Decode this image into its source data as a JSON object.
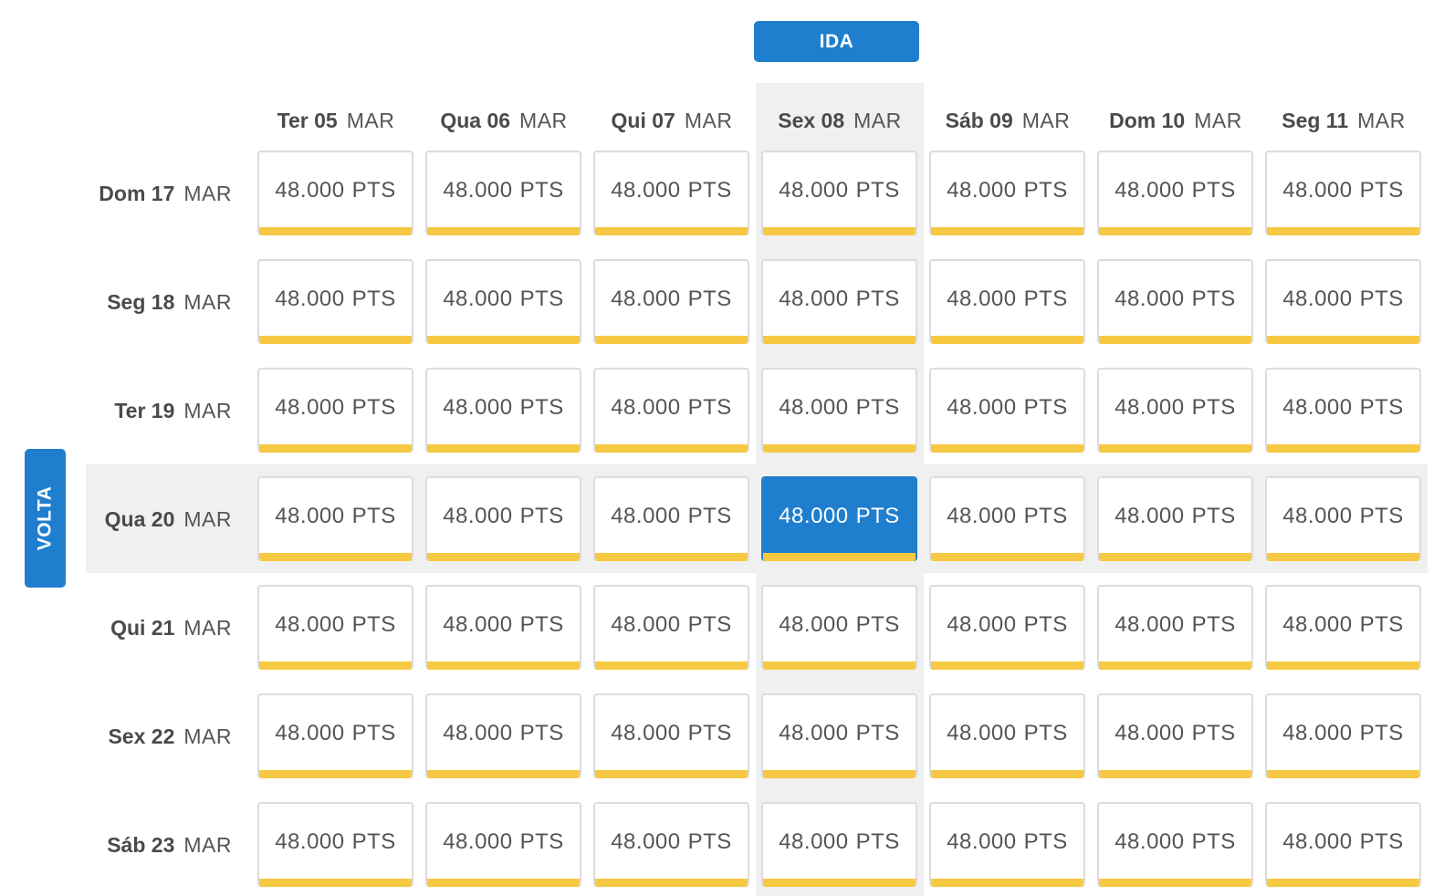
{
  "ida_label": "IDA",
  "volta_label": "VOLTA",
  "columns": [
    {
      "day": "Ter 05",
      "month": "MAR"
    },
    {
      "day": "Qua 06",
      "month": "MAR"
    },
    {
      "day": "Qui 07",
      "month": "MAR"
    },
    {
      "day": "Sex 08",
      "month": "MAR"
    },
    {
      "day": "Sáb 09",
      "month": "MAR"
    },
    {
      "day": "Dom 10",
      "month": "MAR"
    },
    {
      "day": "Seg 11",
      "month": "MAR"
    }
  ],
  "rows": [
    {
      "day": "Dom 17",
      "month": "MAR"
    },
    {
      "day": "Seg 18",
      "month": "MAR"
    },
    {
      "day": "Ter 19",
      "month": "MAR"
    },
    {
      "day": "Qua 20",
      "month": "MAR"
    },
    {
      "day": "Qui 21",
      "month": "MAR"
    },
    {
      "day": "Sex 22",
      "month": "MAR"
    },
    {
      "day": "Sáb 23",
      "month": "MAR"
    }
  ],
  "prices": [
    [
      "48.000",
      "48.000",
      "48.000",
      "48.000",
      "48.000",
      "48.000",
      "48.000"
    ],
    [
      "48.000",
      "48.000",
      "48.000",
      "48.000",
      "48.000",
      "48.000",
      "48.000"
    ],
    [
      "48.000",
      "48.000",
      "48.000",
      "48.000",
      "48.000",
      "48.000",
      "48.000"
    ],
    [
      "48.000",
      "48.000",
      "48.000",
      "48.000",
      "48.000",
      "48.000",
      "48.000"
    ],
    [
      "48.000",
      "48.000",
      "48.000",
      "48.000",
      "48.000",
      "48.000",
      "48.000"
    ],
    [
      "48.000",
      "48.000",
      "48.000",
      "48.000",
      "48.000",
      "48.000",
      "48.000"
    ],
    [
      "48.000",
      "48.000",
      "48.000",
      "48.000",
      "48.000",
      "48.000",
      "48.000"
    ]
  ],
  "price_unit": "PTS",
  "selected": {
    "row": 3,
    "col": 3
  },
  "colors": {
    "accent_blue": "#1f7fce",
    "price_bar_yellow": "#f7c942",
    "highlight_gray": "#f0f0f0"
  }
}
